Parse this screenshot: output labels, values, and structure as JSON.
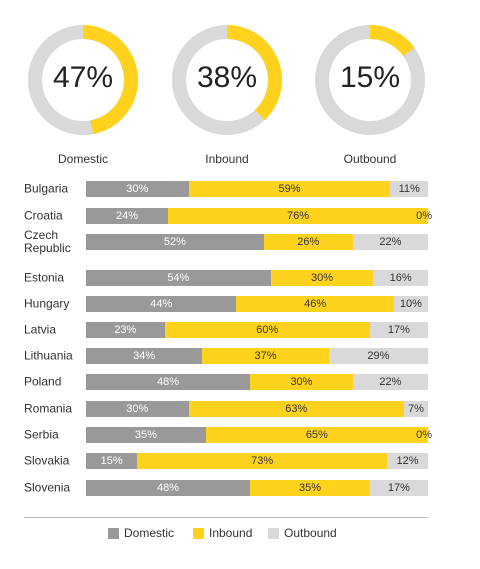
{
  "colors": {
    "domestic": "#999999",
    "inbound": "#ffd21e",
    "outbound": "#d9d9d9"
  },
  "summary": [
    {
      "label": "Domestic",
      "value_text": "47%",
      "value": 47
    },
    {
      "label": "Inbound",
      "value_text": "38%",
      "value": 38
    },
    {
      "label": "Outbound",
      "value_text": "15%",
      "value": 15
    }
  ],
  "chart_data": {
    "type": "bar",
    "orientation": "horizontal",
    "stacked": true,
    "percent": true,
    "categories": [
      "Bulgaria",
      "Croatia",
      "Czech Republic",
      "Estonia",
      "Hungary",
      "Latvia",
      "Lithuania",
      "Poland",
      "Romania",
      "Serbia",
      "Slovakia",
      "Slovenia"
    ],
    "series": [
      {
        "name": "Domestic",
        "values": [
          30,
          24,
          52,
          54,
          44,
          23,
          34,
          48,
          30,
          35,
          15,
          48
        ]
      },
      {
        "name": "Inbound",
        "values": [
          59,
          76,
          26,
          30,
          46,
          60,
          37,
          30,
          63,
          65,
          73,
          35
        ]
      },
      {
        "name": "Outbound",
        "values": [
          11,
          0,
          22,
          16,
          10,
          17,
          29,
          22,
          7,
          0,
          12,
          17
        ]
      }
    ],
    "value_labels": [
      [
        "30%",
        "59%",
        "11%"
      ],
      [
        "24%",
        "76%",
        "0%"
      ],
      [
        "52%",
        "26%",
        "22%"
      ],
      [
        "54%",
        "30%",
        "16%"
      ],
      [
        "44%",
        "46%",
        "10%"
      ],
      [
        "23%",
        "60%",
        "17%"
      ],
      [
        "34%",
        "37%",
        "29%"
      ],
      [
        "48%",
        "30%",
        "22%"
      ],
      [
        "30%",
        "63%",
        "7%"
      ],
      [
        "35%",
        "65%",
        "0%"
      ],
      [
        "15%",
        "73%",
        "12%"
      ],
      [
        "48%",
        "35%",
        "17%"
      ]
    ],
    "legend": {
      "position": "bottom",
      "items": [
        "Domestic",
        "Inbound",
        "Outbound"
      ]
    }
  }
}
